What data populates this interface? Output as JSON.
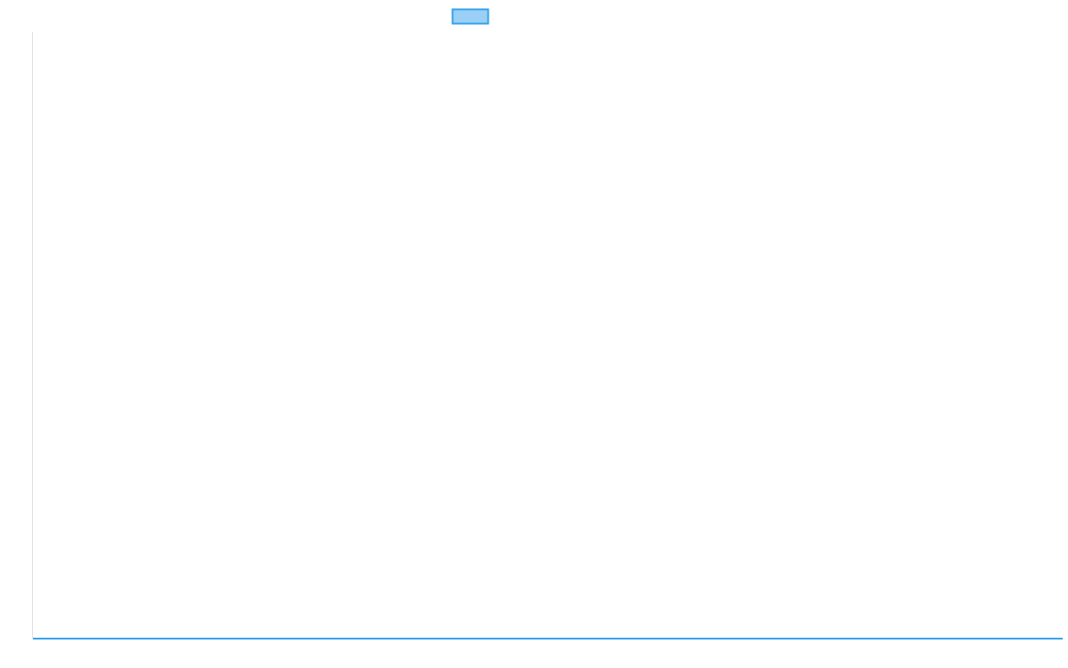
{
  "chart_data": {
    "type": "line",
    "title": "",
    "xlabel": "",
    "ylabel": "",
    "grid": false,
    "legend_placement": "top",
    "series": [
      {
        "values": [
          0,
          0
        ],
        "color": "#36a2eb",
        "fill": "#9ad0f5"
      }
    ]
  }
}
